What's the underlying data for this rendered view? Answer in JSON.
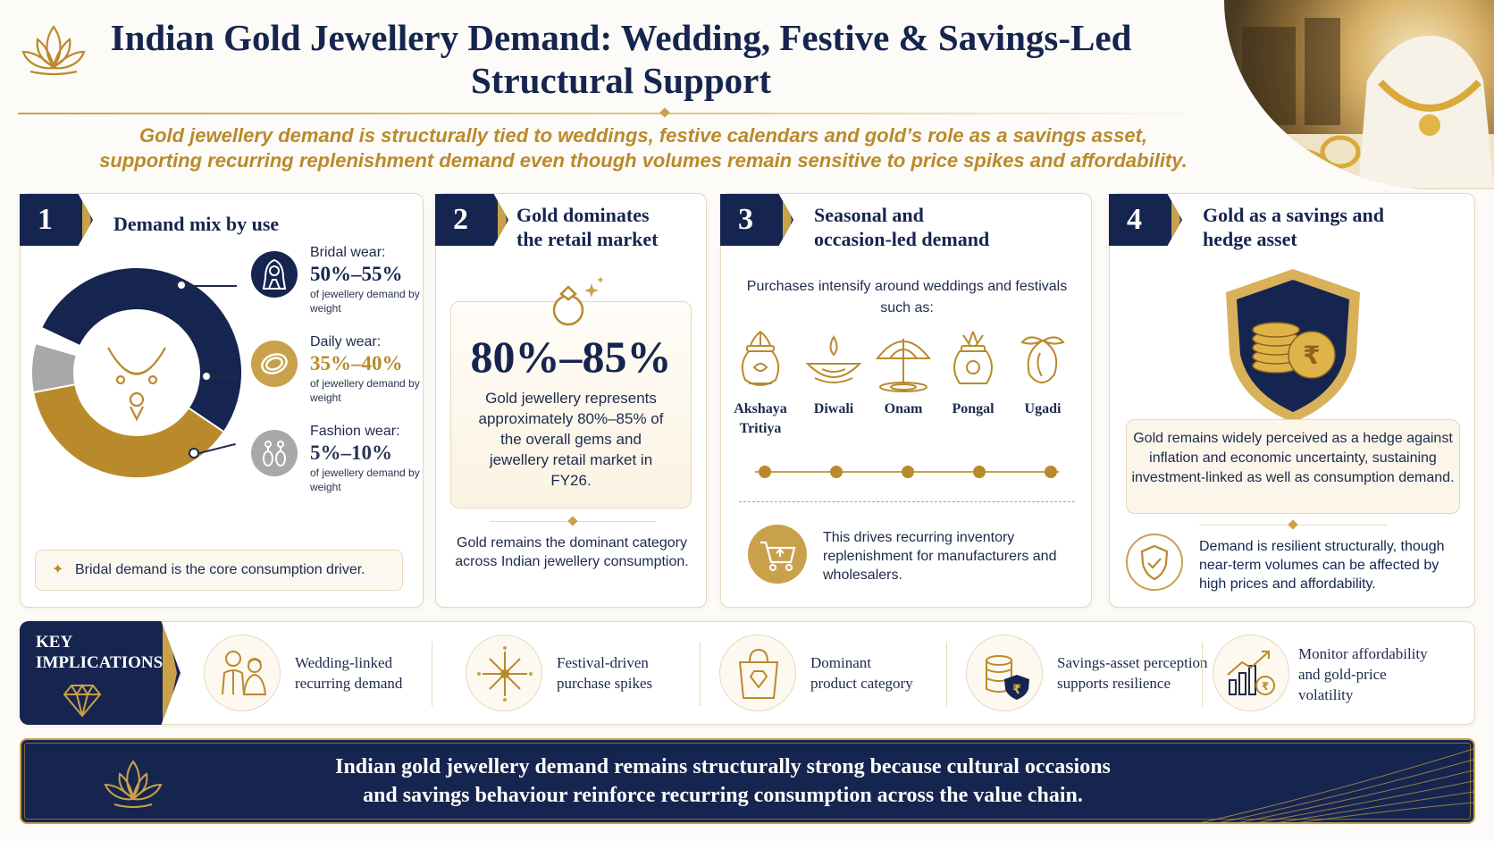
{
  "header": {
    "title_line1": "Indian Gold Jewellery Demand: Wedding, Festive & Savings-Led",
    "title_line2": "Structural Support",
    "subtitle_line1": "Gold jewellery demand is structurally tied to weddings, festive calendars and gold’s role as a savings asset,",
    "subtitle_line2": "supporting recurring replenishment demand even though volumes remain sensitive to price spikes and affordability."
  },
  "cards": {
    "mix": {
      "num": "1",
      "title": "Demand mix by use",
      "segments": [
        {
          "label": "Bridal wear:",
          "value": "50%–55%",
          "note": "of jewellery demand by weight",
          "color": "#16254f",
          "share": 52.5
        },
        {
          "label": "Daily wear:",
          "value": "35%–40%",
          "note": "of jewellery demand by weight",
          "color": "#b98a2c",
          "share": 37.5
        },
        {
          "label": "Fashion wear:",
          "value": "5%–10%",
          "note": "of jewellery demand by weight",
          "color": "#a8a8a8",
          "share": 7.5
        }
      ],
      "footnote": "Bridal demand is the core consumption driver."
    },
    "retail": {
      "num": "2",
      "title_line1": "Gold dominates",
      "title_line2": "the retail market",
      "stat": "80%–85%",
      "stat_desc": "Gold jewellery represents approximately 80%–85% of the overall gems and jewellery retail market in FY26.",
      "footnote": "Gold remains the dominant category across Indian jewellery consumption."
    },
    "seasonal": {
      "num": "3",
      "title_line1": "Seasonal and",
      "title_line2": "occasion-led demand",
      "intro": "Purchases intensify around weddings and festivals such as:",
      "festivals": [
        {
          "name": "Akshaya Tritiya",
          "icon": "kalash-icon"
        },
        {
          "name": "Diwali",
          "icon": "diya-icon"
        },
        {
          "name": "Onam",
          "icon": "umbrella-icon"
        },
        {
          "name": "Pongal",
          "icon": "pongal-pot-icon"
        },
        {
          "name": "Ugadi",
          "icon": "mango-icon"
        }
      ],
      "footnote": "This drives recurring inventory replenishment for manufacturers and wholesalers."
    },
    "savings": {
      "num": "4",
      "title_line1": "Gold as a savings and",
      "title_line2": "hedge asset",
      "box": "Gold remains widely perceived as a hedge against inflation and economic uncertainty, sustaining investment-linked as well as consumption demand.",
      "footnote": "Demand is resilient structurally, though near-term volumes can be affected by high prices and affordability."
    }
  },
  "implications": {
    "title_line1": "KEY",
    "title_line2": "IMPLICATIONS",
    "items": [
      {
        "line1": "Wedding-linked",
        "line2": "recurring demand",
        "line3": "",
        "icon": "couple-icon"
      },
      {
        "line1": "Festival-driven",
        "line2": "purchase spikes",
        "line3": "",
        "icon": "fireworks-icon"
      },
      {
        "line1": "Dominant",
        "line2": "product category",
        "line3": "",
        "icon": "shopping-bag-icon"
      },
      {
        "line1": "Savings-asset perception",
        "line2": "supports resilience",
        "line3": "",
        "icon": "coins-shield-icon"
      },
      {
        "line1": "Monitor affordability",
        "line2": "and gold-price",
        "line3": "volatility",
        "icon": "price-chart-icon"
      }
    ]
  },
  "banner": {
    "line1": "Indian gold jewellery demand remains structurally strong because cultural occasions",
    "line2": "and savings behaviour reinforce recurring consumption across the value chain."
  },
  "colors": {
    "navy": "#16254f",
    "gold": "#b98a2c",
    "grey": "#a8a8a8",
    "cream": "#fdfbf7"
  }
}
